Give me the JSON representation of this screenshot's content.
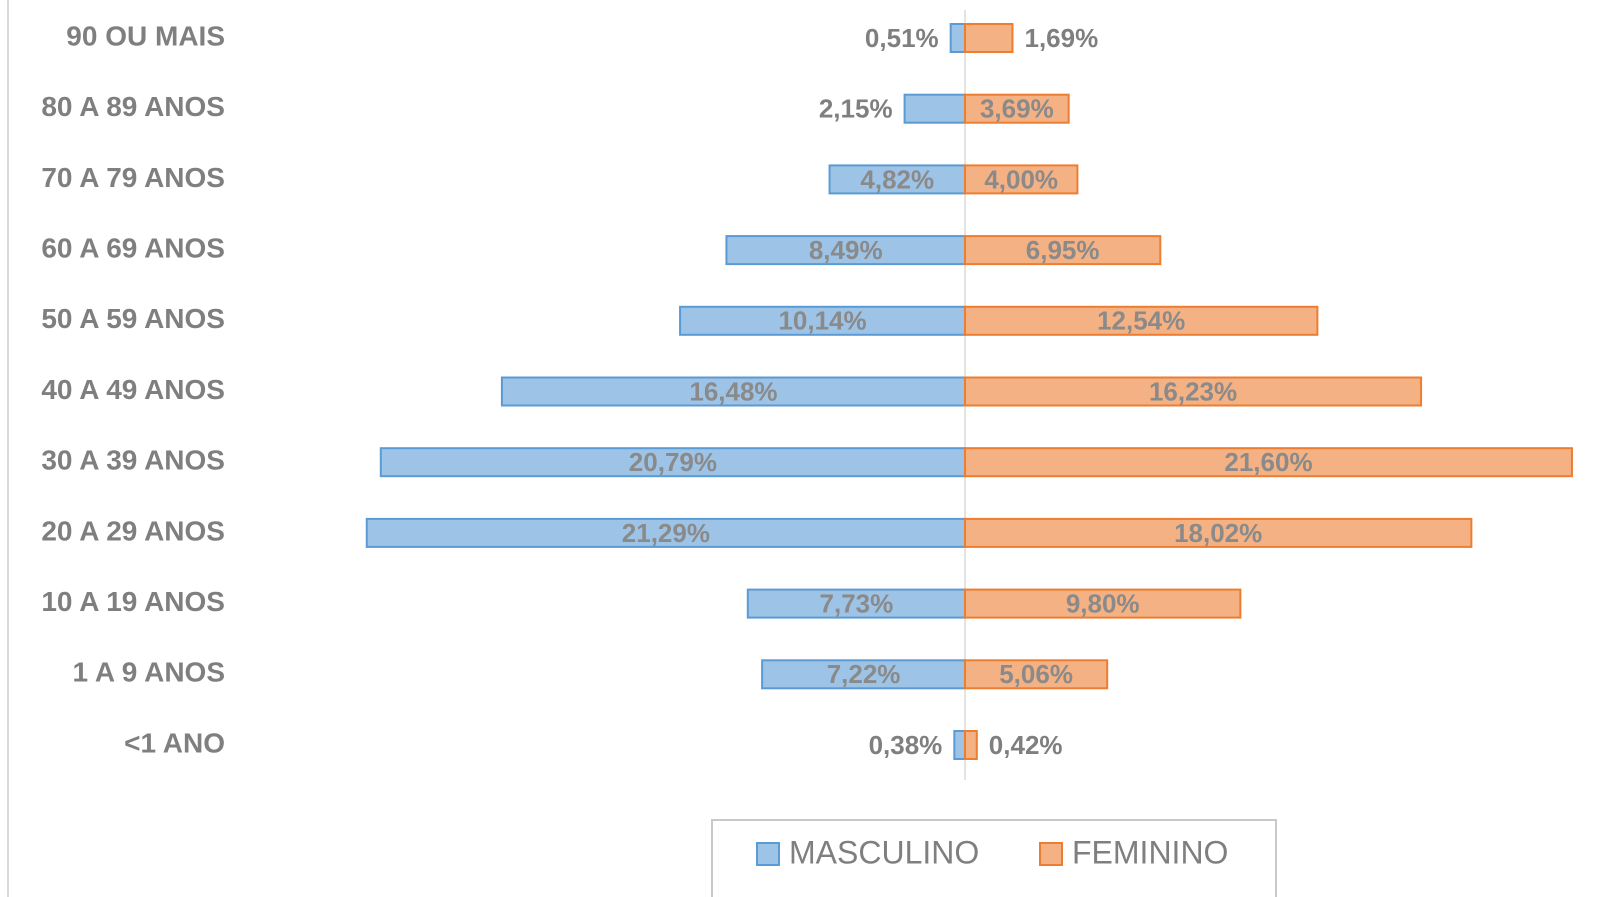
{
  "chart_data": {
    "type": "pyramid",
    "categories": [
      "90 OU MAIS",
      "80 A 89 ANOS",
      "70 A 79 ANOS",
      "60 A 69 ANOS",
      "50 A 59 ANOS",
      "40 A 49 ANOS",
      "30 A 39 ANOS",
      "20 A 29 ANOS",
      "10 A 19 ANOS",
      "1 A 9 ANOS",
      "<1 ANO"
    ],
    "series": [
      {
        "name": "MASCULINO",
        "color": "#9dc3e6",
        "side": "left",
        "values": [
          0.51,
          2.15,
          4.82,
          8.49,
          10.14,
          16.48,
          20.79,
          21.29,
          7.73,
          7.22,
          0.38
        ],
        "value_labels": [
          "0,51%",
          "2,15%",
          "4,82%",
          "8,49%",
          "10,14%",
          "16,48%",
          "20,79%",
          "21,29%",
          "7,73%",
          "7,22%",
          "0,38%"
        ]
      },
      {
        "name": "FEMININO",
        "color": "#f4b183",
        "side": "right",
        "values": [
          1.69,
          3.69,
          4.0,
          6.95,
          12.54,
          16.23,
          21.6,
          18.02,
          9.8,
          5.06,
          0.42
        ],
        "value_labels": [
          "1,69%",
          "3,69%",
          "4,00%",
          "6,95%",
          "12,54%",
          "16,23%",
          "21,60%",
          "18,02%",
          "9,80%",
          "5,06%",
          "0,42%"
        ]
      }
    ],
    "legend": "bottom"
  }
}
